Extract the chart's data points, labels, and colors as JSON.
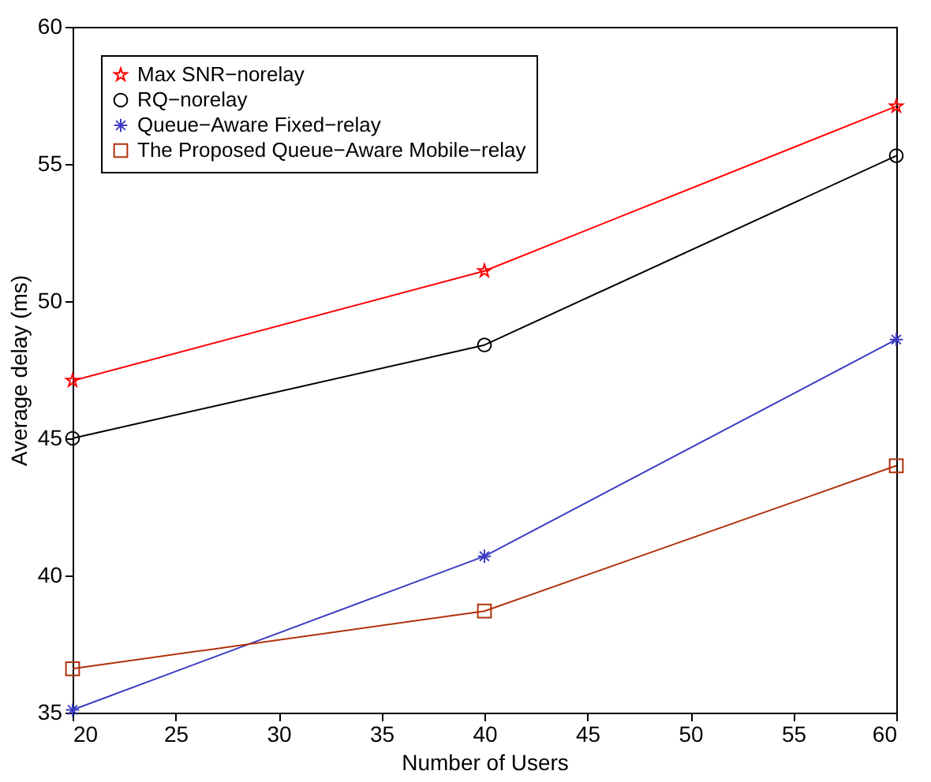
{
  "chart_data": {
    "type": "line",
    "xlabel": "Number of Users",
    "ylabel": "Average delay (ms)",
    "x": [
      20,
      40,
      60
    ],
    "xlim": [
      20,
      60
    ],
    "xticks": [
      20,
      25,
      30,
      35,
      40,
      45,
      50,
      55,
      60
    ],
    "ylim": [
      35,
      60
    ],
    "yticks": [
      35,
      40,
      45,
      50,
      55,
      60
    ],
    "grid": false,
    "legend": "top left",
    "line_style": "solid",
    "series": [
      {
        "name": "Max SNR−norelay",
        "color": "#ff0000",
        "marker": "star",
        "values": [
          47.1,
          51.1,
          57.1
        ]
      },
      {
        "name": "RQ−norelay",
        "color": "#000000",
        "marker": "circle",
        "values": [
          45.0,
          48.4,
          55.3
        ]
      },
      {
        "name": "Queue−Aware Fixed−relay",
        "color": "#3b3bc4",
        "marker": "cross",
        "values": [
          35.1,
          40.7,
          48.6
        ]
      },
      {
        "name": "The Proposed Queue−Aware Mobile−relay",
        "color": "#b0300a",
        "marker": "square",
        "values": [
          36.6,
          38.7,
          44.0
        ]
      }
    ]
  }
}
